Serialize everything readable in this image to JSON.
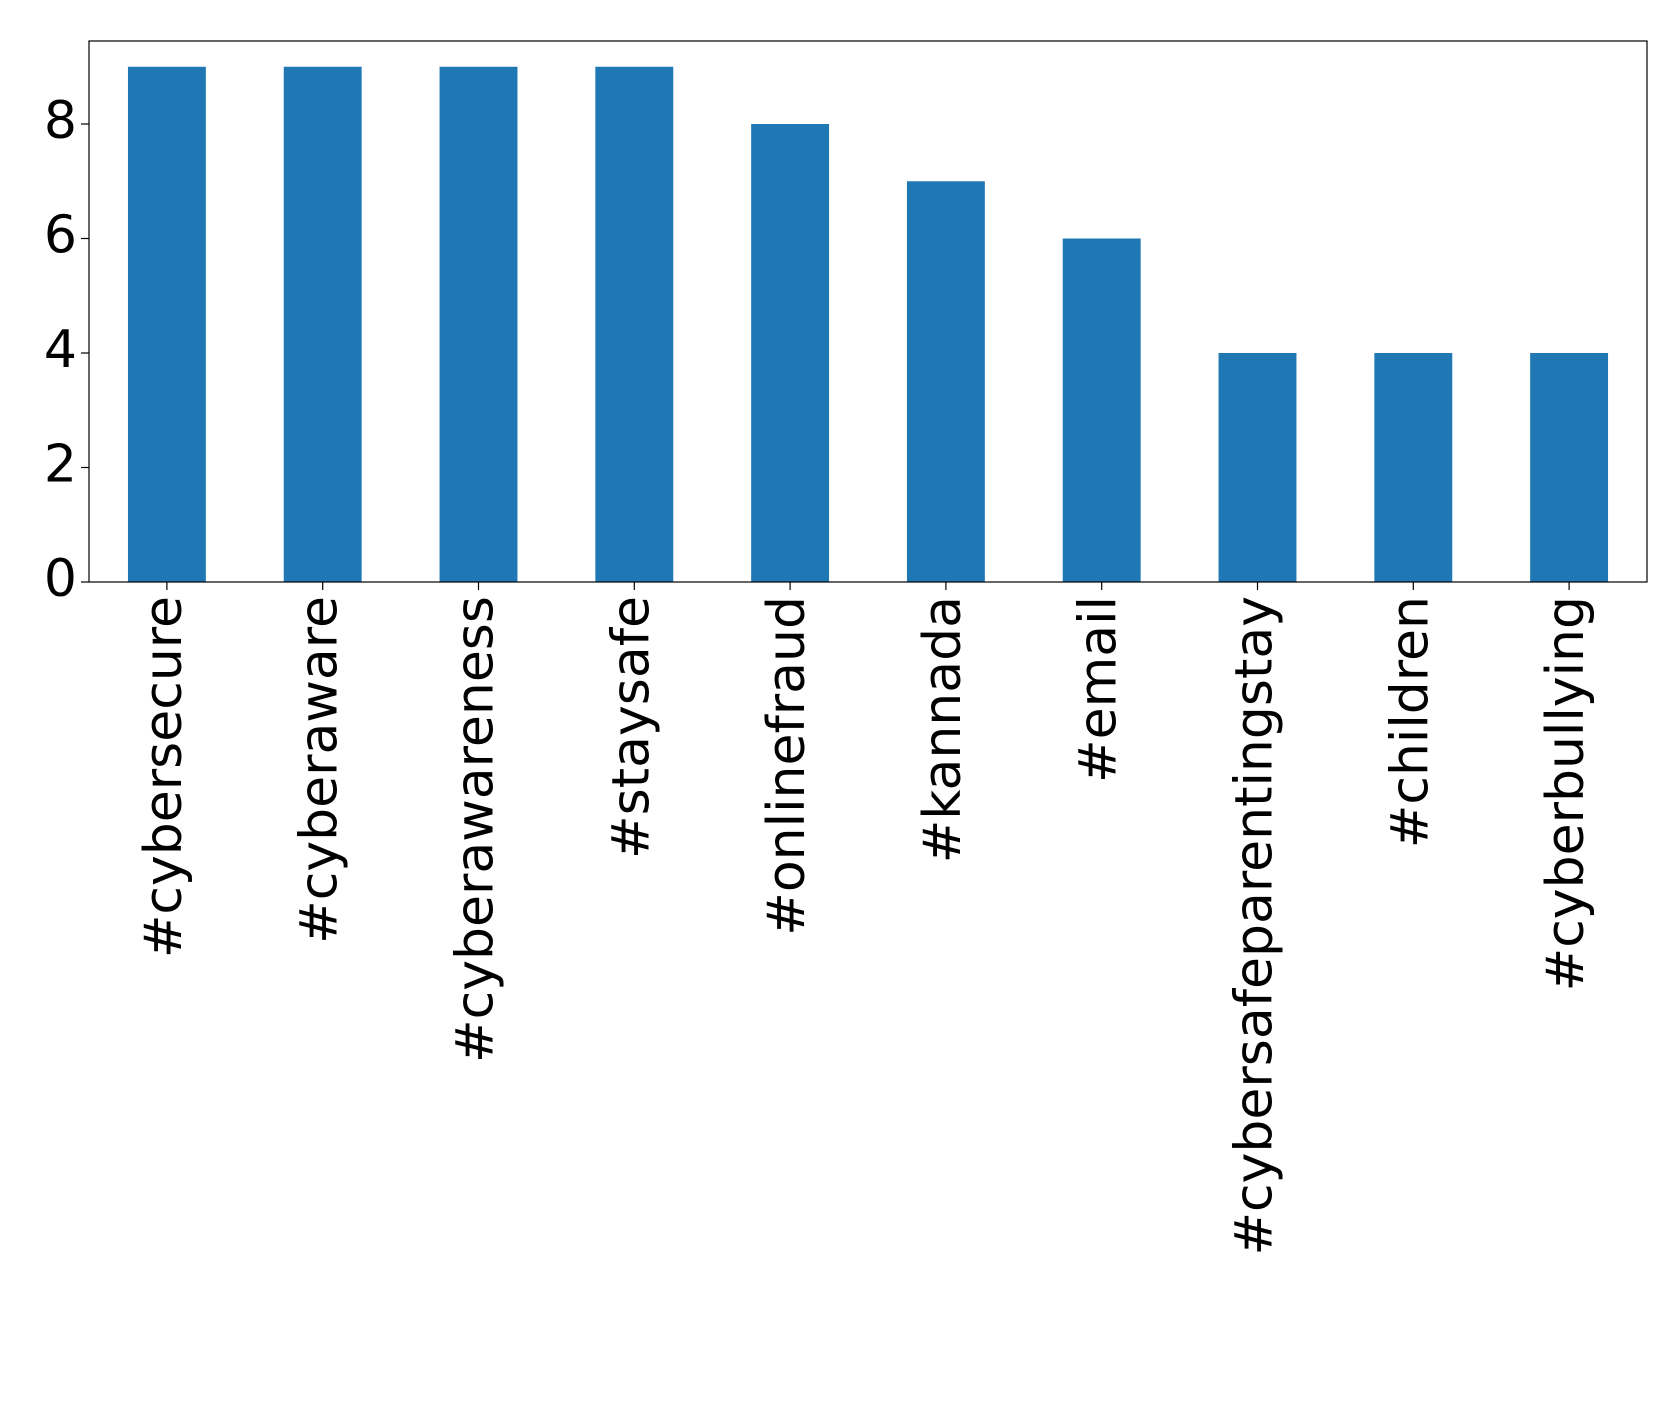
{
  "chart_data": {
    "type": "bar",
    "categories": [
      "#cybersecure",
      "#cyberaware",
      "#cyberawareness",
      "#staysafe",
      "#onlinefraud",
      "#kannada",
      "#email",
      "#cybersafeparentingstay",
      "#children",
      "#cyberbullying"
    ],
    "values": [
      9,
      9,
      9,
      9,
      8,
      7,
      6,
      4,
      4,
      4
    ],
    "color": "#1f77b4",
    "ylim": [
      0,
      9.45
    ],
    "yticks": [
      0,
      2,
      4,
      6,
      8
    ],
    "grid": false
  }
}
